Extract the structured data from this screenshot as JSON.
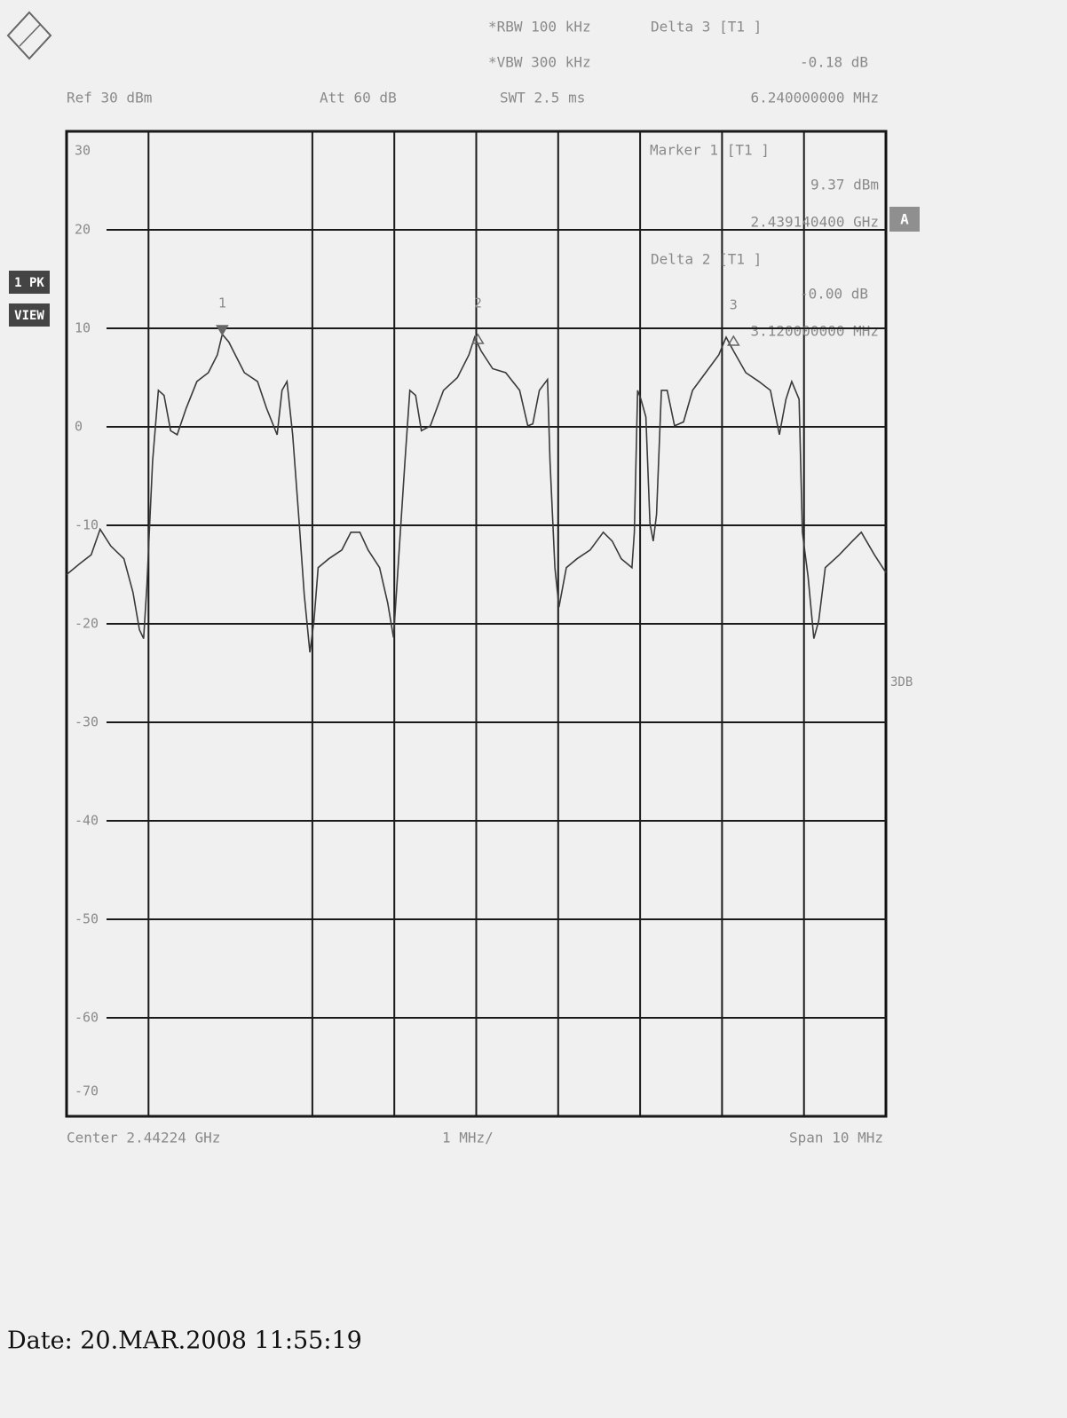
{
  "chart_data": {
    "type": "line",
    "annotations": {
      "rbw": "*RBW 100 kHz",
      "vbw": "*VBW 300 kHz",
      "ref": "Ref 30 dBm",
      "att": "Att 60 dB",
      "swt": "SWT 2.5 ms",
      "delta3_title": "Delta 3 [T1 ]",
      "delta3_level": "-0.18 dB",
      "delta3_freq": "6.240000000 MHz",
      "marker1_title": "Marker 1 [T1 ]",
      "marker1_level": "9.37 dBm",
      "marker1_freq": "2.439140400 GHz",
      "delta2_title": "Delta 2 [T1 ]",
      "delta2_level": "-0.00 dB",
      "delta2_freq": "3.120000000 MHz",
      "trace_badge": "A",
      "detector": "1 PK",
      "view": "VIEW",
      "side_label": "3DB",
      "center": "Center 2.44224 GHz",
      "div": "1 MHz/",
      "span": "Span 10 MHz",
      "date": "Date: 20.MAR.2008  11:55:19"
    },
    "x": [
      2437.24,
      2437.4,
      2437.54,
      2437.65,
      2437.78,
      2437.94,
      2438.05,
      2438.13,
      2438.18,
      2438.22,
      2438.25,
      2438.29,
      2438.36,
      2438.43,
      2438.51,
      2438.59,
      2438.7,
      2438.83,
      2438.97,
      2439.08,
      2439.14,
      2439.22,
      2439.3,
      2439.41,
      2439.57,
      2439.68,
      2439.81,
      2439.87,
      2439.93,
      2440.0,
      2440.08,
      2440.14,
      2440.21,
      2440.26,
      2440.31,
      2440.44,
      2440.6,
      2440.71,
      2440.82,
      2440.92,
      2441.06,
      2441.16,
      2441.23,
      2441.3,
      2441.37,
      2441.43,
      2441.5,
      2441.57,
      2441.68,
      2441.84,
      2442.01,
      2442.15,
      2442.22,
      2442.3,
      2442.44,
      2442.6,
      2442.77,
      2442.87,
      2442.93,
      2443.01,
      2443.11,
      2443.14,
      2443.2,
      2443.25,
      2443.34,
      2443.47,
      2443.63,
      2443.79,
      2443.9,
      2444.01,
      2444.14,
      2444.17,
      2444.21,
      2444.25,
      2444.31,
      2444.36,
      2444.4,
      2444.44,
      2444.5,
      2444.57,
      2444.66,
      2444.77,
      2444.88,
      2445.04,
      2445.2,
      2445.29,
      2445.38,
      2445.53,
      2445.69,
      2445.83,
      2445.94,
      2446.02,
      2446.09,
      2446.18,
      2446.22,
      2446.29,
      2446.36,
      2446.42,
      2446.5,
      2446.67,
      2446.83,
      2446.94,
      2447.1,
      2447.24
    ],
    "values": [
      -15.0,
      -13.9,
      -13.0,
      -10.4,
      -12.1,
      -13.4,
      -16.8,
      -20.6,
      -21.5,
      -16.1,
      -10.7,
      -3.5,
      3.7,
      3.2,
      -0.4,
      -0.8,
      1.9,
      4.6,
      5.5,
      7.3,
      9.4,
      8.6,
      7.3,
      5.5,
      4.6,
      1.9,
      -0.8,
      3.7,
      4.6,
      -0.8,
      -9.8,
      -17.0,
      -22.9,
      -19.7,
      -14.3,
      -13.4,
      -12.5,
      -10.7,
      -10.7,
      -12.5,
      -14.3,
      -17.9,
      -21.4,
      -12.5,
      -3.5,
      3.7,
      3.2,
      -0.4,
      0.1,
      3.7,
      5.0,
      7.3,
      9.1,
      7.7,
      5.9,
      5.5,
      3.7,
      0.1,
      0.3,
      3.7,
      4.8,
      -3.5,
      -14.3,
      -18.3,
      -14.3,
      -13.4,
      -12.5,
      -10.7,
      -11.6,
      -13.4,
      -14.3,
      -10.7,
      3.7,
      2.8,
      1.0,
      -9.8,
      -11.6,
      -8.9,
      3.7,
      3.7,
      0.1,
      0.5,
      3.7,
      5.5,
      7.3,
      9.1,
      7.7,
      5.5,
      4.6,
      3.7,
      -0.8,
      2.8,
      4.6,
      2.8,
      -10.7,
      -15.2,
      -21.5,
      -19.7,
      -14.3,
      -13.0,
      -11.6,
      -10.7,
      -13.0,
      -14.8
    ],
    "color": "#3a3a3a",
    "markers": [
      {
        "label": "1",
        "x": 2439.14,
        "y": 9.37
      },
      {
        "label": "2",
        "x": 2442.26,
        "y": 9.37
      },
      {
        "label": "3",
        "x": 2445.38,
        "y": 9.19
      }
    ],
    "xlim": [
      2437.24,
      2447.24
    ],
    "ylim": [
      -70,
      30
    ],
    "yticks": [
      30,
      20,
      10,
      0,
      -10,
      -20,
      -30,
      -40,
      -50,
      -60,
      -70
    ],
    "grid": true
  }
}
